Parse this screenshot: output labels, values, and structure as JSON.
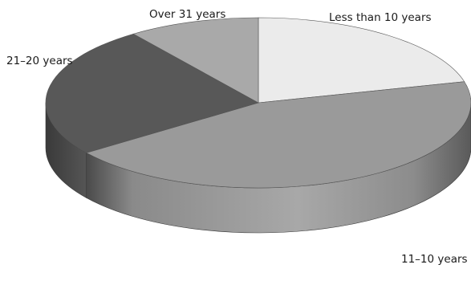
{
  "chart_data": {
    "type": "pie",
    "style": "3d-tilted",
    "title": "",
    "legend": "none",
    "slices": [
      {
        "label": "Less than 10 years",
        "value": 21,
        "color": "#ebebeb"
      },
      {
        "label": "11–10 years",
        "value": 44,
        "color": "#9a9a9a"
      },
      {
        "label": "21–20 years",
        "value": 25,
        "color": "#585858"
      },
      {
        "label": "Over 31 years",
        "value": 10,
        "color": "#a9a9a9"
      }
    ]
  }
}
